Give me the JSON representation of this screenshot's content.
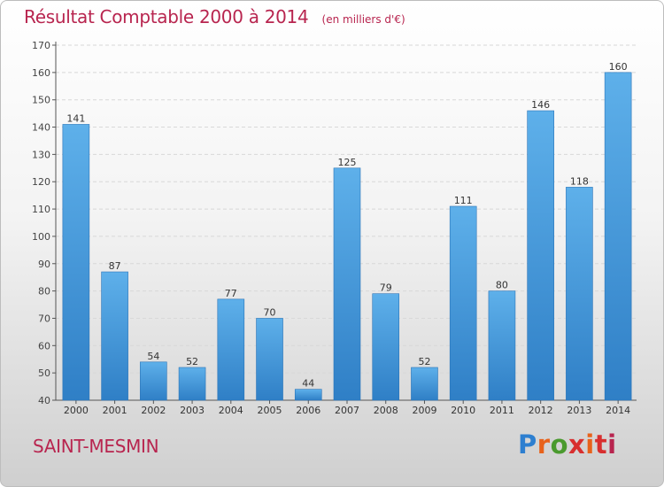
{
  "chart_data": {
    "type": "bar",
    "title": "Résultat Comptable 2000 à 2014",
    "subtitle": "(en milliers d'€)",
    "categories": [
      "2000",
      "2001",
      "2002",
      "2003",
      "2004",
      "2005",
      "2006",
      "2007",
      "2008",
      "2009",
      "2010",
      "2011",
      "2012",
      "2013",
      "2014"
    ],
    "values": [
      141,
      87,
      54,
      52,
      77,
      70,
      44,
      125,
      79,
      52,
      111,
      80,
      146,
      118,
      160
    ],
    "ylim": [
      40,
      170
    ],
    "yticks": [
      40,
      50,
      60,
      70,
      80,
      90,
      100,
      110,
      120,
      130,
      140,
      150,
      160,
      170
    ],
    "grid": true,
    "bar_color": "#3a8fd6",
    "bar_color_light": "#5aaee6"
  },
  "footer": {
    "commune": "SAINT-MESMIN",
    "logo_text": "Proxiti",
    "logo_colors": [
      "#2d7fd0",
      "#e8621b",
      "#4a9a2e",
      "#d82f2f",
      "#e8621b",
      "#d82f2f",
      "#b8254f"
    ]
  }
}
